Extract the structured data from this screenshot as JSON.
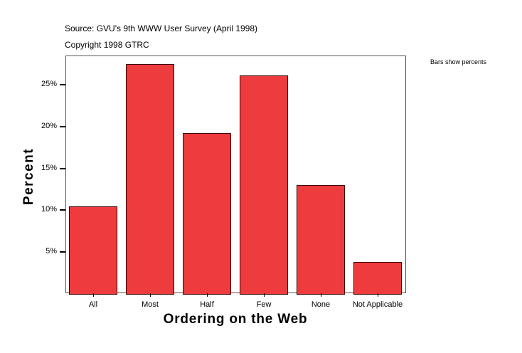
{
  "header": {
    "source": "Source: GVU's 9th WWW User Survey (April 1998)",
    "copyright": "Copyright 1998 GTRC",
    "note": "Bars show percents"
  },
  "colors": {
    "bar": "#ee3b3d",
    "bar_border": "#3a0000",
    "frame": "#555555"
  },
  "chart_data": {
    "type": "bar",
    "title": "",
    "xlabel": "Ordering on the Web",
    "ylabel": "Percent",
    "categories": [
      "All",
      "Most",
      "Half",
      "Few",
      "None",
      "Not Applicable"
    ],
    "values": [
      10.5,
      27.5,
      19.2,
      26.1,
      13.0,
      3.8
    ],
    "yticks": [
      "5%",
      "10%",
      "15%",
      "20%",
      "25%"
    ],
    "ytick_values": [
      5,
      10,
      15,
      20,
      25
    ],
    "ylim": [
      0,
      28.4
    ],
    "grid": false,
    "legend": "none",
    "annotation": "Bars show percents"
  }
}
